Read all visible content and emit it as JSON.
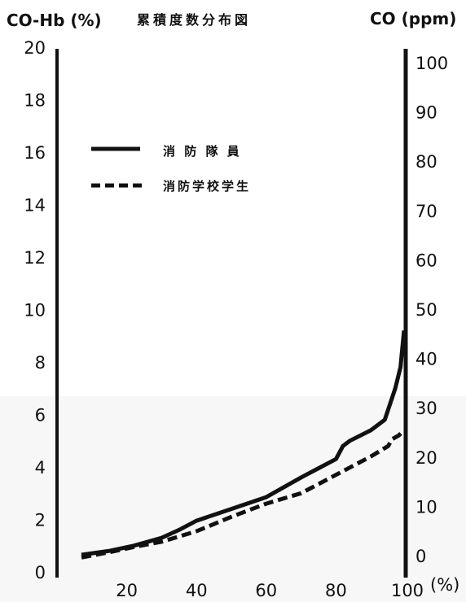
{
  "chart_data": {
    "type": "line",
    "title": "累積度数分布図",
    "y_left_label": "CO-Hb (%)",
    "y_right_label": "CO (ppm)",
    "x_unit_label": "(%)",
    "xlim": [
      0,
      100
    ],
    "ylim_left": [
      0,
      20
    ],
    "ylim_right": [
      0,
      100
    ],
    "x_ticks": [
      "20",
      "40",
      "60",
      "80",
      "100"
    ],
    "y_left_ticks": [
      "0",
      "2",
      "4",
      "6",
      "8",
      "10",
      "12",
      "14",
      "16",
      "18",
      "20"
    ],
    "y_right_ticks": [
      "0",
      "10",
      "20",
      "30",
      "40",
      "50",
      "60",
      "70",
      "80",
      "90",
      "100"
    ],
    "legend_position": "upper-left",
    "grid": false,
    "series": [
      {
        "name": "消 防 隊 員",
        "style": "solid",
        "color": "#111111",
        "x": [
          7,
          15,
          22,
          30,
          35,
          40,
          50,
          60,
          70,
          80,
          82,
          84,
          90,
          94,
          97,
          98.5,
          99.5
        ],
        "y": [
          0.65,
          0.8,
          1.0,
          1.3,
          1.6,
          1.95,
          2.4,
          2.85,
          3.6,
          4.3,
          4.8,
          5.0,
          5.4,
          5.8,
          7.0,
          7.8,
          9.2
        ]
      },
      {
        "name": "消防学校学生",
        "style": "dashed",
        "color": "#111111",
        "x": [
          7,
          15,
          22,
          30,
          40,
          50,
          60,
          70,
          80,
          90,
          95,
          96,
          98,
          99.5
        ],
        "y": [
          0.55,
          0.75,
          0.95,
          1.15,
          1.55,
          2.1,
          2.6,
          3.0,
          3.7,
          4.4,
          4.8,
          5.05,
          5.2,
          5.4
        ]
      }
    ]
  }
}
